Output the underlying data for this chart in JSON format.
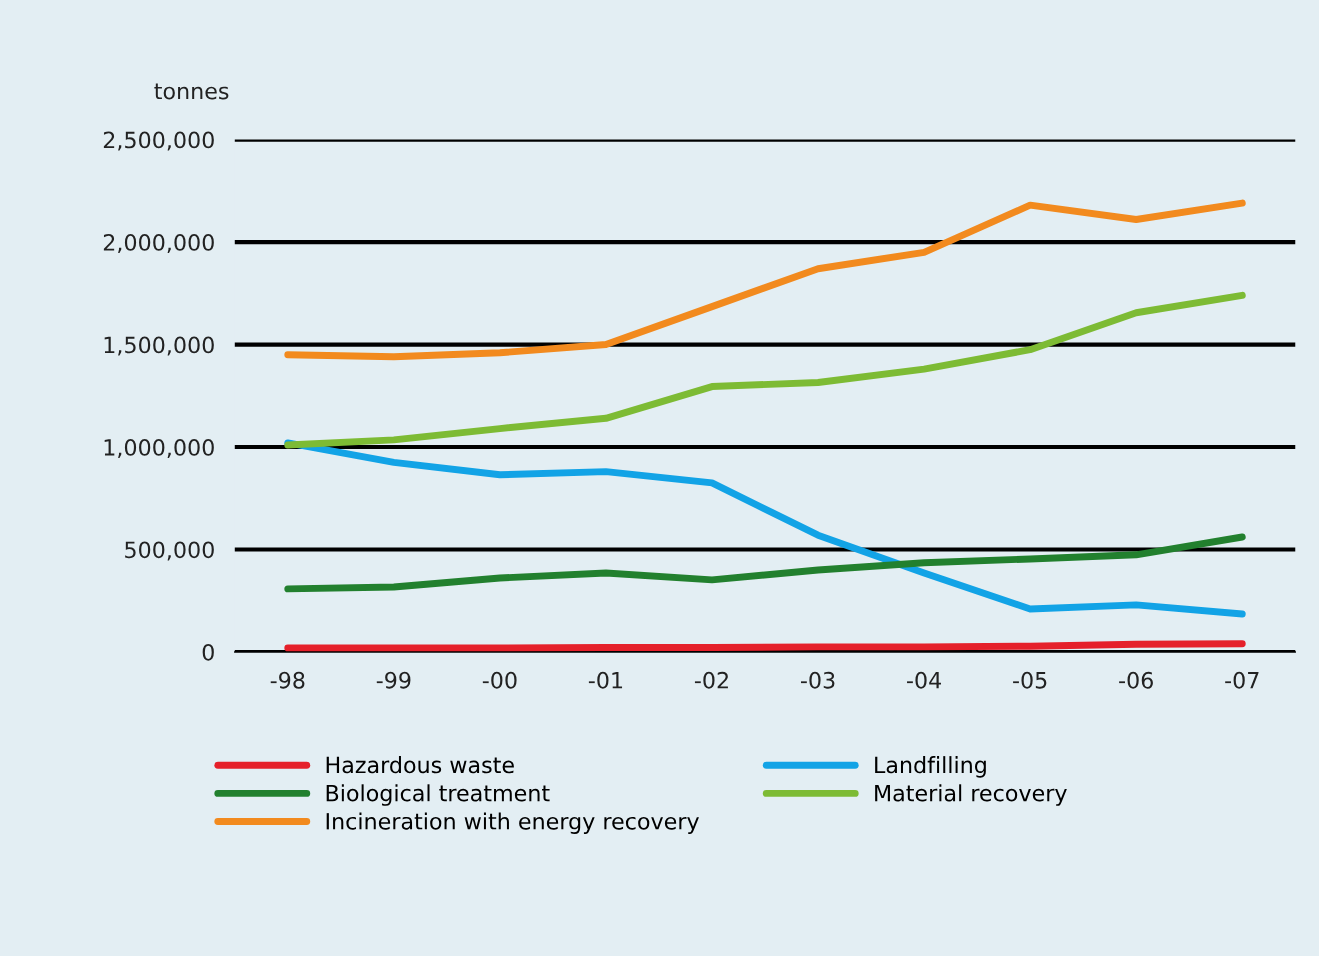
{
  "chart_data": {
    "type": "line",
    "ylabel": "tonnes",
    "categories": [
      "-98",
      "-99",
      "-00",
      "-01",
      "-02",
      "-03",
      "-04",
      "-05",
      "-06",
      "-07"
    ],
    "series": [
      {
        "name": "Hazardous waste",
        "color": "#e5202a",
        "values": [
          20000,
          20000,
          20000,
          22000,
          22000,
          25000,
          25000,
          28000,
          38000,
          40000
        ]
      },
      {
        "name": "Landfilling",
        "color": "#12a3e6",
        "values": [
          1020000,
          925000,
          865000,
          880000,
          825000,
          570000,
          385000,
          210000,
          230000,
          185000
        ]
      },
      {
        "name": "Biological treatment",
        "color": "#22802e",
        "values": [
          308000,
          317000,
          361000,
          385000,
          352000,
          400000,
          435000,
          454000,
          474000,
          561000
        ]
      },
      {
        "name": "Material recovery",
        "color": "#7dbb34",
        "values": [
          1010000,
          1035000,
          1090000,
          1140000,
          1295000,
          1315000,
          1380000,
          1475000,
          1655000,
          1740000
        ]
      },
      {
        "name": "Incineration with energy recovery",
        "color": "#f28a1e",
        "values": [
          1450000,
          1440000,
          1460000,
          1500000,
          1685000,
          1870000,
          1950000,
          2180000,
          2110000,
          2190000
        ]
      }
    ],
    "ylim": [
      0,
      2500000
    ],
    "yticks": [
      {
        "value": 0,
        "label": "0"
      },
      {
        "value": 500000,
        "label": "500,000"
      },
      {
        "value": 1000000,
        "label": "1,000,000"
      },
      {
        "value": 1500000,
        "label": "1,500,000"
      },
      {
        "value": 2000000,
        "label": "2,000,000"
      },
      {
        "value": 2500000,
        "label": "2,500,000"
      }
    ],
    "grid": "y",
    "legend": "bottom",
    "marker": "none",
    "line_style": "solid"
  }
}
